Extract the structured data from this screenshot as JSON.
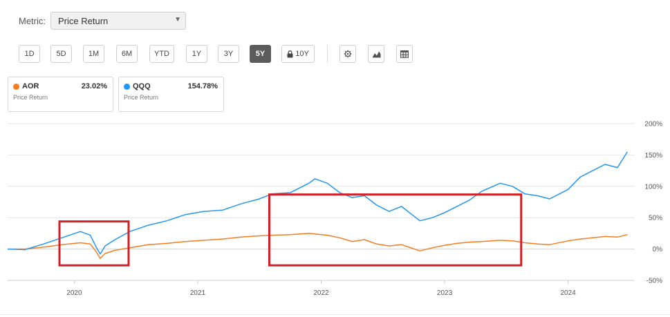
{
  "metric": {
    "label": "Metric:",
    "value": "Price Return"
  },
  "periods": [
    "1D",
    "5D",
    "1M",
    "6M",
    "YTD",
    "1Y",
    "3Y",
    "5Y",
    "10Y"
  ],
  "active_period": "5Y",
  "tool_icons": [
    "lock-icon",
    "gear-icon",
    "mountain-chart-icon",
    "table-icon"
  ],
  "cards": [
    {
      "symbol": "AOR",
      "value": "23.02%",
      "metric": "Price Return",
      "color": "#f57c1f"
    },
    {
      "symbol": "QQQ",
      "value": "154.78%",
      "metric": "Price Return",
      "color": "#2196f3"
    }
  ],
  "highlight_color": "#d32027",
  "chart_data": {
    "type": "line",
    "x_tick_labels": [
      "2020",
      "2021",
      "2022",
      "2023",
      "2024"
    ],
    "y_tick_labels": [
      "200%",
      "150%",
      "100%",
      "50%",
      "0%",
      "-50%"
    ],
    "ylim": [
      -50,
      200
    ],
    "xlim": [
      2019.46,
      2024.54
    ],
    "grid": true,
    "series": [
      {
        "name": "QQQ",
        "color": "#2196f3",
        "x": [
          2019.46,
          2019.6,
          2019.75,
          2019.9,
          2020.05,
          2020.13,
          2020.18,
          2020.21,
          2020.25,
          2020.33,
          2020.45,
          2020.6,
          2020.75,
          2020.9,
          2021.05,
          2021.2,
          2021.35,
          2021.5,
          2021.6,
          2021.75,
          2021.9,
          2021.95,
          2022.05,
          2022.15,
          2022.25,
          2022.35,
          2022.45,
          2022.55,
          2022.65,
          2022.8,
          2022.9,
          2023.0,
          2023.1,
          2023.2,
          2023.3,
          2023.45,
          2023.55,
          2023.65,
          2023.75,
          2023.85,
          2024.0,
          2024.1,
          2024.2,
          2024.3,
          2024.4,
          2024.48
        ],
        "y": [
          0,
          -1,
          8,
          18,
          28,
          22,
          2,
          -8,
          5,
          15,
          28,
          38,
          45,
          55,
          60,
          62,
          72,
          80,
          88,
          90,
          105,
          112,
          105,
          90,
          82,
          85,
          70,
          60,
          68,
          45,
          50,
          58,
          68,
          78,
          92,
          105,
          100,
          88,
          85,
          80,
          95,
          115,
          125,
          135,
          130,
          155
        ]
      },
      {
        "name": "AOR",
        "color": "#f57c1f",
        "x": [
          2019.46,
          2019.6,
          2019.75,
          2019.9,
          2020.05,
          2020.13,
          2020.18,
          2020.21,
          2020.25,
          2020.33,
          2020.45,
          2020.6,
          2020.75,
          2020.9,
          2021.05,
          2021.2,
          2021.35,
          2021.5,
          2021.6,
          2021.75,
          2021.9,
          2021.95,
          2022.05,
          2022.15,
          2022.25,
          2022.35,
          2022.45,
          2022.55,
          2022.65,
          2022.8,
          2022.9,
          2023.0,
          2023.1,
          2023.2,
          2023.3,
          2023.45,
          2023.55,
          2023.65,
          2023.75,
          2023.85,
          2024.0,
          2024.1,
          2024.2,
          2024.3,
          2024.4,
          2024.48
        ],
        "y": [
          0,
          0,
          3,
          7,
          10,
          8,
          -5,
          -15,
          -7,
          -2,
          2,
          7,
          9,
          12,
          14,
          16,
          19,
          21,
          22,
          23,
          25,
          24,
          22,
          18,
          12,
          15,
          8,
          5,
          7,
          -3,
          2,
          6,
          9,
          11,
          12,
          14,
          13,
          10,
          8,
          7,
          13,
          16,
          18,
          20,
          19,
          23
        ]
      }
    ],
    "annotations": [
      {
        "shape": "box",
        "x": [
          2019.88,
          2020.44
        ],
        "y": [
          -26,
          44
        ]
      },
      {
        "shape": "box",
        "x": [
          2021.58,
          2023.62
        ],
        "y": [
          -26,
          87
        ]
      }
    ]
  }
}
